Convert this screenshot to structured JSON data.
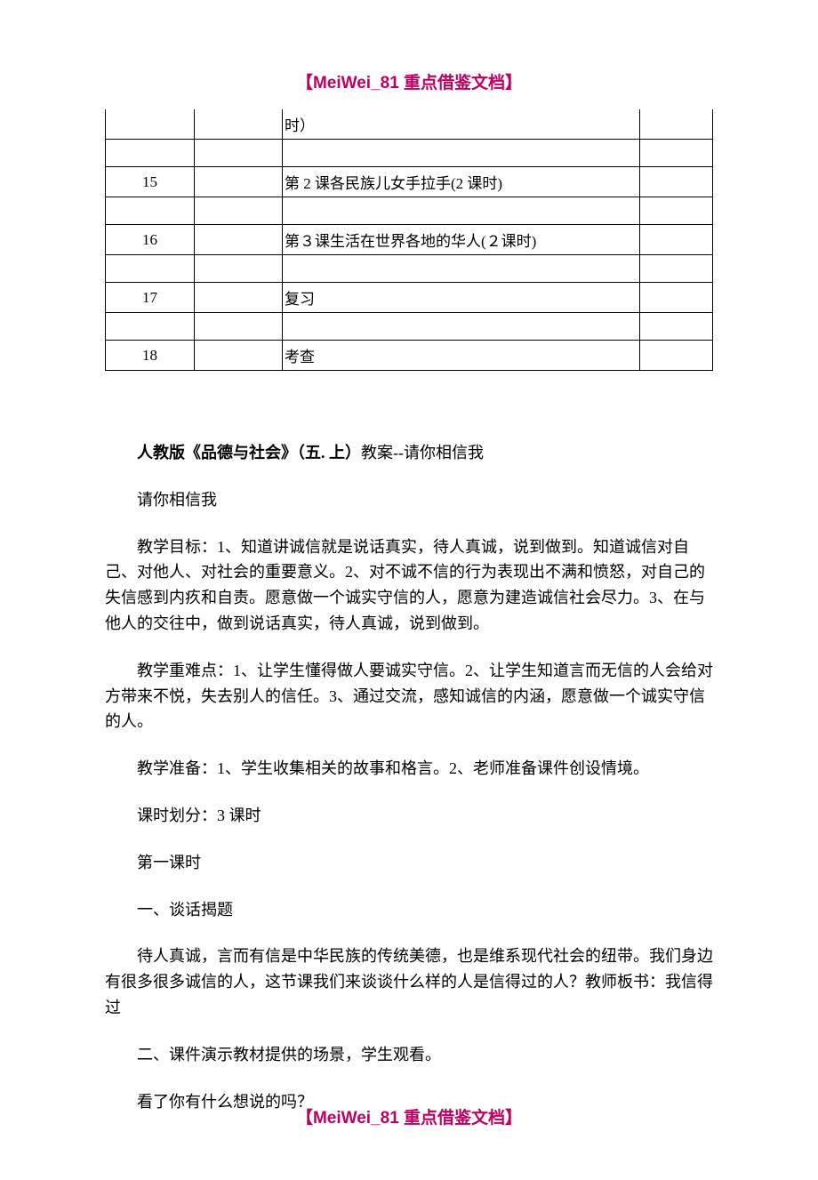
{
  "header_footer": "【MeiWei_81 重点借鉴文档】",
  "table": {
    "rows": [
      {
        "col1": "",
        "col3": "时）"
      },
      {
        "col1": "15",
        "col3": "第 2 课各民族儿女手拉手(2 课时)"
      },
      {
        "col1": "16",
        "col3": "第３课生活在世界各地的华人(２课时)"
      },
      {
        "col1": "17",
        "col3": "复习"
      },
      {
        "col1": "18",
        "col3": "考查"
      }
    ]
  },
  "lesson": {
    "title_bold": "人教版《品德与社会》（五. 上）",
    "title_rest": "教案--请你相信我",
    "p1": "请你相信我",
    "p2": "教学目标：1、知道讲诚信就是说话真实，待人真诚，说到做到。知道诚信对自己、对他人、对社会的重要意义。2、对不诚不信的行为表现出不满和愤怒，对自己的失信感到内疚和自责。愿意做一个诚实守信的人，愿意为建造诚信社会尽力。3、在与他人的交往中，做到说话真实，待人真诚，说到做到。",
    "p3": "教学重难点：1、让学生懂得做人要诚实守信。2、让学生知道言而无信的人会给对方带来不悦，失去别人的信任。3、通过交流，感知诚信的内涵，愿意做一个诚实守信的人。",
    "p4": "教学准备：1、学生收集相关的故事和格言。2、老师准备课件创设情境。",
    "p5": "课时划分：3 课时",
    "p6": "第一课时",
    "p7": "一、谈话揭题",
    "p8": "待人真诚，言而有信是中华民族的传统美德，也是维系现代社会的纽带。我们身边有很多很多诚信的人，这节课我们来谈谈什么样的人是信得过的人？教师板书：我信得过",
    "p9": "二、课件演示教材提供的场景，学生观看。",
    "p10": "看了你有什么想说的吗？"
  }
}
